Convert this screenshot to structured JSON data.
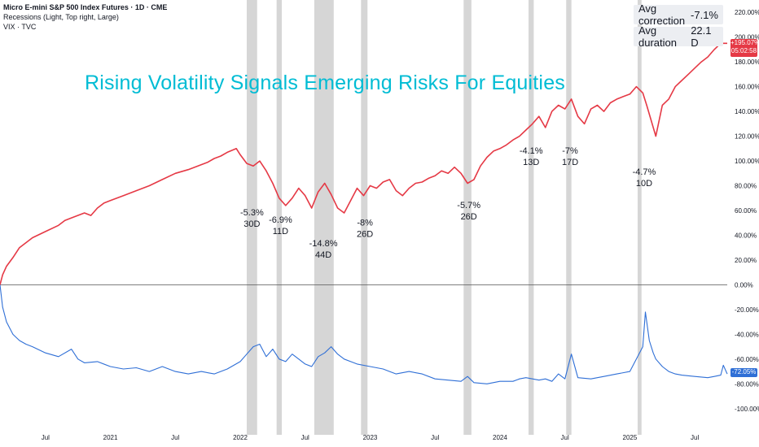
{
  "legend": {
    "symbol": "Micro E-mini S&P 500 Index Futures · 1D · CME",
    "recessions": "Recessions (Light, Top right, Large)",
    "vix": "VIX · TVC"
  },
  "headline": "Rising Volatility Signals Emerging Risks For Equities",
  "stats": {
    "avg_correction_label": "Avg correction",
    "avg_correction_value": "-7.1%",
    "avg_duration_label": "Avg duration",
    "avg_duration_value": "22.1 D"
  },
  "badges": {
    "price_pct": "+195.07%",
    "price_time": "05:02:58",
    "vix_pct": "-72.05%"
  },
  "colors": {
    "price": "#e53945",
    "vix": "#2f6fd6",
    "band": "#cfcfcf",
    "headline": "#00bcd4"
  },
  "chart_data": {
    "type": "line",
    "title": "Rising Volatility Signals Emerging Risks For Equities",
    "y_axis_unit": "%",
    "ylim": [
      -110,
      230
    ],
    "y_ticks": [
      220,
      200,
      180,
      160,
      140,
      120,
      100,
      80,
      60,
      40,
      20,
      0,
      -20,
      -40,
      -60,
      -80,
      -100
    ],
    "y_tick_labels": [
      "220.00%",
      "200.00%",
      "180.00%",
      "160.00%",
      "140.00%",
      "120.00%",
      "100.00%",
      "80.00%",
      "60.00%",
      "40.00%",
      "20.00%",
      "0.00%",
      "-20.00%",
      "-40.00%",
      "-60.00%",
      "-80.00%",
      "-100.00%"
    ],
    "x_axis": {
      "unit": "years since 2020-01-01",
      "range": [
        0.15,
        5.75
      ],
      "ticks": [
        {
          "label": "Jul",
          "x": 0.5
        },
        {
          "label": "2021",
          "x": 1.0
        },
        {
          "label": "Jul",
          "x": 1.5
        },
        {
          "label": "2022",
          "x": 2.0
        },
        {
          "label": "Jul",
          "x": 2.5
        },
        {
          "label": "2023",
          "x": 3.0
        },
        {
          "label": "Jul",
          "x": 3.5
        },
        {
          "label": "2024",
          "x": 4.0
        },
        {
          "label": "Jul",
          "x": 4.5
        },
        {
          "label": "2025",
          "x": 5.0
        },
        {
          "label": "Jul",
          "x": 5.5
        }
      ]
    },
    "series": [
      {
        "name": "Micro E-mini S&P 500 Index Futures",
        "color": "#e53945",
        "x": [
          0.15,
          0.17,
          0.2,
          0.25,
          0.3,
          0.4,
          0.5,
          0.6,
          0.65,
          0.7,
          0.8,
          0.85,
          0.9,
          0.95,
          1.0,
          1.1,
          1.2,
          1.3,
          1.4,
          1.5,
          1.6,
          1.7,
          1.75,
          1.8,
          1.85,
          1.9,
          1.97,
          2.0,
          2.05,
          2.1,
          2.15,
          2.2,
          2.25,
          2.3,
          2.35,
          2.4,
          2.45,
          2.5,
          2.55,
          2.6,
          2.65,
          2.7,
          2.75,
          2.8,
          2.85,
          2.9,
          2.95,
          3.0,
          3.05,
          3.1,
          3.15,
          3.2,
          3.25,
          3.3,
          3.35,
          3.4,
          3.45,
          3.5,
          3.55,
          3.6,
          3.65,
          3.7,
          3.75,
          3.8,
          3.85,
          3.9,
          3.95,
          4.0,
          4.05,
          4.1,
          4.15,
          4.2,
          4.25,
          4.3,
          4.35,
          4.4,
          4.45,
          4.5,
          4.55,
          4.6,
          4.65,
          4.7,
          4.75,
          4.8,
          4.85,
          4.9,
          4.95,
          5.0,
          5.05,
          5.1,
          5.13,
          5.2,
          5.25,
          5.3,
          5.35,
          5.4,
          5.45,
          5.5,
          5.55,
          5.6,
          5.65,
          5.7,
          5.75
        ],
        "y": [
          0,
          8,
          15,
          22,
          30,
          38,
          43,
          48,
          52,
          54,
          58,
          56,
          62,
          66,
          68,
          72,
          76,
          80,
          85,
          90,
          93,
          97,
          99,
          102,
          104,
          107,
          110,
          105,
          98,
          96,
          100,
          92,
          82,
          70,
          64,
          70,
          78,
          72,
          62,
          75,
          82,
          73,
          62,
          58,
          68,
          78,
          72,
          80,
          78,
          83,
          85,
          76,
          72,
          78,
          82,
          83,
          86,
          88,
          92,
          90,
          95,
          90,
          82,
          85,
          96,
          103,
          108,
          110,
          113,
          117,
          120,
          125,
          130,
          136,
          127,
          140,
          145,
          142,
          150,
          136,
          130,
          142,
          145,
          140,
          147,
          150,
          152,
          154,
          160,
          155,
          145,
          120,
          145,
          150,
          160,
          165,
          170,
          175,
          180,
          184,
          190,
          195,
          195
        ]
      },
      {
        "name": "VIX",
        "color": "#2f6fd6",
        "x": [
          0.15,
          0.17,
          0.2,
          0.25,
          0.3,
          0.35,
          0.4,
          0.5,
          0.6,
          0.7,
          0.75,
          0.8,
          0.9,
          1.0,
          1.1,
          1.2,
          1.3,
          1.4,
          1.5,
          1.6,
          1.7,
          1.8,
          1.9,
          2.0,
          2.05,
          2.1,
          2.15,
          2.2,
          2.25,
          2.3,
          2.35,
          2.4,
          2.45,
          2.5,
          2.55,
          2.6,
          2.65,
          2.7,
          2.75,
          2.8,
          2.85,
          2.9,
          3.0,
          3.1,
          3.15,
          3.2,
          3.3,
          3.4,
          3.5,
          3.6,
          3.7,
          3.75,
          3.8,
          3.9,
          4.0,
          4.1,
          4.15,
          4.2,
          4.3,
          4.35,
          4.4,
          4.45,
          4.5,
          4.55,
          4.6,
          4.7,
          4.8,
          4.9,
          5.0,
          5.05,
          5.1,
          5.12,
          5.15,
          5.18,
          5.2,
          5.25,
          5.3,
          5.35,
          5.4,
          5.5,
          5.6,
          5.65,
          5.7,
          5.72,
          5.75
        ],
        "y": [
          0,
          -18,
          -30,
          -40,
          -45,
          -48,
          -50,
          -55,
          -58,
          -52,
          -60,
          -63,
          -62,
          -66,
          -68,
          -67,
          -70,
          -66,
          -70,
          -72,
          -70,
          -72,
          -68,
          -62,
          -56,
          -50,
          -48,
          -58,
          -52,
          -60,
          -62,
          -56,
          -60,
          -64,
          -66,
          -58,
          -55,
          -50,
          -56,
          -60,
          -62,
          -64,
          -66,
          -68,
          -70,
          -72,
          -70,
          -72,
          -76,
          -77,
          -78,
          -74,
          -79,
          -80,
          -78,
          -78,
          -76,
          -75,
          -77,
          -76,
          -78,
          -72,
          -76,
          -56,
          -75,
          -76,
          -74,
          -72,
          -70,
          -60,
          -50,
          -22,
          -45,
          -55,
          -60,
          -66,
          -70,
          -72,
          -73,
          -74,
          -75,
          -74,
          -73,
          -65,
          -72
        ]
      }
    ],
    "shaded_periods": [
      {
        "x_start": 2.05,
        "x_end": 2.13
      },
      {
        "x_start": 2.28,
        "x_end": 2.32
      },
      {
        "x_start": 2.57,
        "x_end": 2.72
      },
      {
        "x_start": 2.93,
        "x_end": 2.98
      },
      {
        "x_start": 3.72,
        "x_end": 3.78
      },
      {
        "x_start": 4.22,
        "x_end": 4.26
      },
      {
        "x_start": 4.51,
        "x_end": 4.55
      },
      {
        "x_start": 5.06,
        "x_end": 5.09
      }
    ],
    "annotations": [
      {
        "line1": "-5.3%",
        "line2": "30D",
        "x": 2.09,
        "y": 56
      },
      {
        "line1": "-6.9%",
        "line2": "11D",
        "x": 2.31,
        "y": 50
      },
      {
        "line1": "-14.8%",
        "line2": "44D",
        "x": 2.64,
        "y": 31
      },
      {
        "line1": "-8%",
        "line2": "26D",
        "x": 2.96,
        "y": 48
      },
      {
        "line1": "-5.7%",
        "line2": "26D",
        "x": 3.76,
        "y": 62
      },
      {
        "line1": "-4.1%",
        "line2": "13D",
        "x": 4.24,
        "y": 106
      },
      {
        "line1": "-7%",
        "line2": "17D",
        "x": 4.54,
        "y": 106
      },
      {
        "line1": "-4.7%",
        "line2": "10D",
        "x": 5.11,
        "y": 89
      }
    ]
  }
}
